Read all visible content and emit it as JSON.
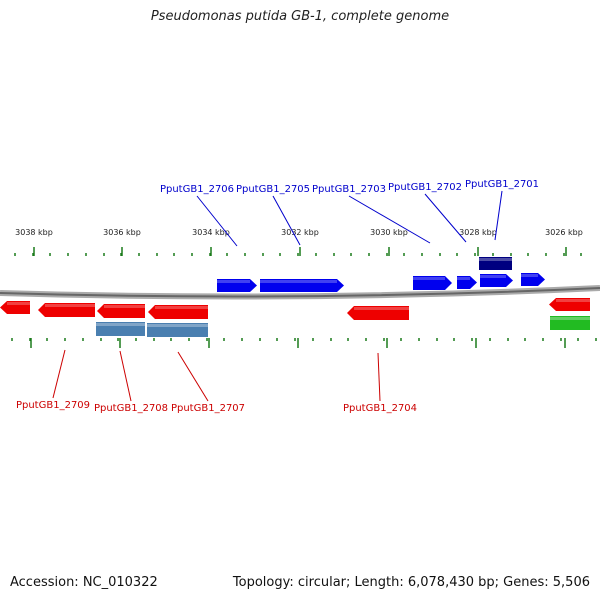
{
  "title": "Pseudomonas putida GB-1, complete genome",
  "footer": {
    "accession": "Accession: NC_010322",
    "summary": "Topology: circular; Length: 6,078,430 bp; Genes: 5,506"
  },
  "colors": {
    "forward_gene": "#0000ee",
    "reverse_gene": "#ee0000",
    "steel_gene": "#4a7fb0",
    "navy_gene": "#000080",
    "green_gene": "#22bb22",
    "backbone": "#888888",
    "tick": "#1a7a1a",
    "forward_label": "#0000cc",
    "reverse_label": "#cc0000"
  },
  "scale_labels": [
    "3038 kbp",
    "3036 kbp",
    "3034 kbp",
    "3032 kbp",
    "3030 kbp",
    "3028 kbp",
    "3026 kbp"
  ],
  "forward_labels": [
    "PputGB1_2706",
    "PputGB1_2705",
    "PputGB1_2703",
    "PputGB1_2702",
    "PputGB1_2701"
  ],
  "reverse_labels": [
    "PputGB1_2709",
    "PputGB1_2708",
    "PputGB1_2707",
    "PputGB1_2704"
  ]
}
